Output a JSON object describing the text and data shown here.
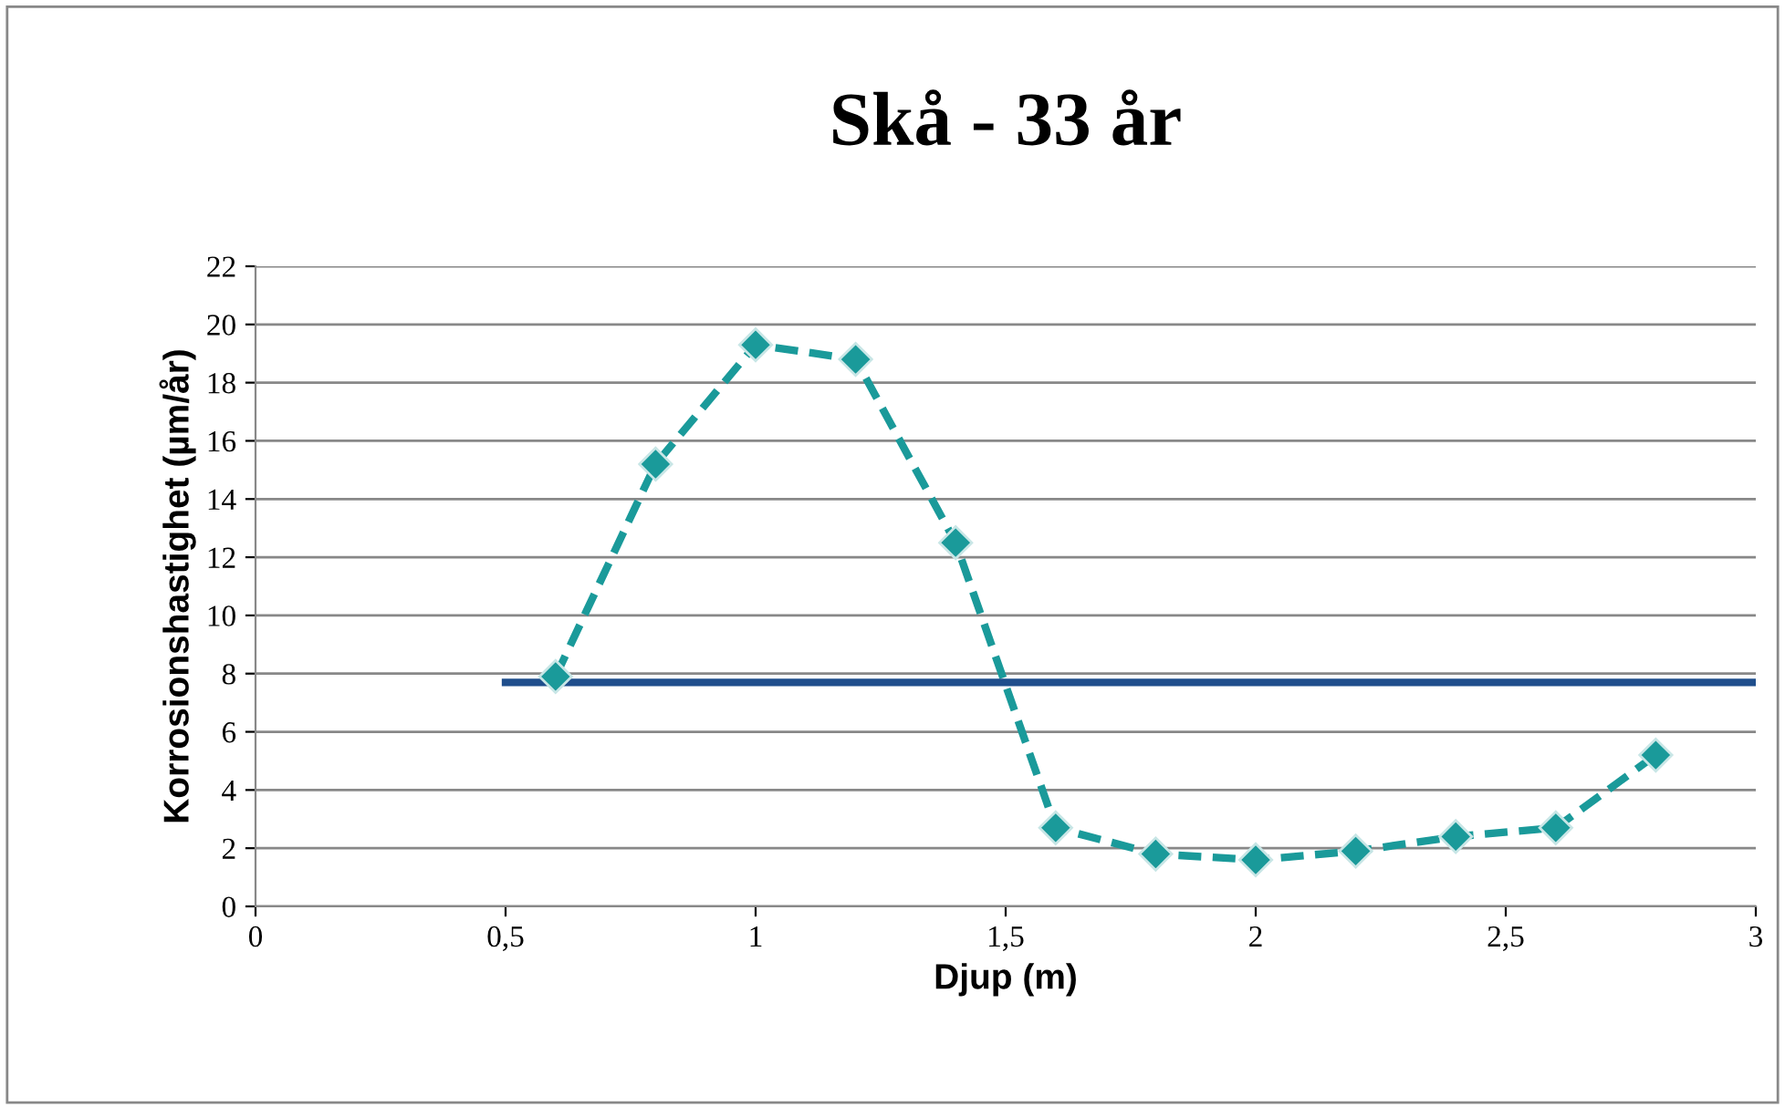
{
  "chart_data": {
    "type": "line",
    "title": "Skå - 33 år",
    "xlabel": "Djup (m)",
    "ylabel": "Korrosionshastighet (µm/år)",
    "series": [
      {
        "type": "line",
        "color": "#1a9a9a",
        "marker": "diamond",
        "line_style": "dashed",
        "x": [
          0.6,
          0.8,
          1.0,
          1.2,
          1.4,
          1.6,
          1.8,
          2.0,
          2.2,
          2.4,
          2.6,
          2.8
        ],
        "values": [
          7.9,
          15.2,
          19.3,
          18.8,
          12.5,
          2.7,
          1.8,
          1.6,
          1.9,
          2.4,
          2.7,
          5.2
        ]
      },
      {
        "type": "line",
        "color": "#1f4e8c",
        "marker": "none",
        "line_style": "solid",
        "x": [
          0.5,
          3
        ],
        "values": [
          7.7,
          7.7
        ]
      }
    ],
    "xlim": [
      0,
      3
    ],
    "xticks": [
      0,
      {
        "value": 0.5,
        "label": "0,5"
      },
      1,
      {
        "value": 1.5,
        "label": "1,5"
      },
      2,
      {
        "value": 2.5,
        "label": "2,5"
      },
      3
    ],
    "ylim": [
      0,
      22
    ],
    "yticks": [
      0,
      2,
      4,
      6,
      8,
      10,
      12,
      14,
      16,
      18,
      20,
      22
    ],
    "grid": "y",
    "legend": false
  }
}
